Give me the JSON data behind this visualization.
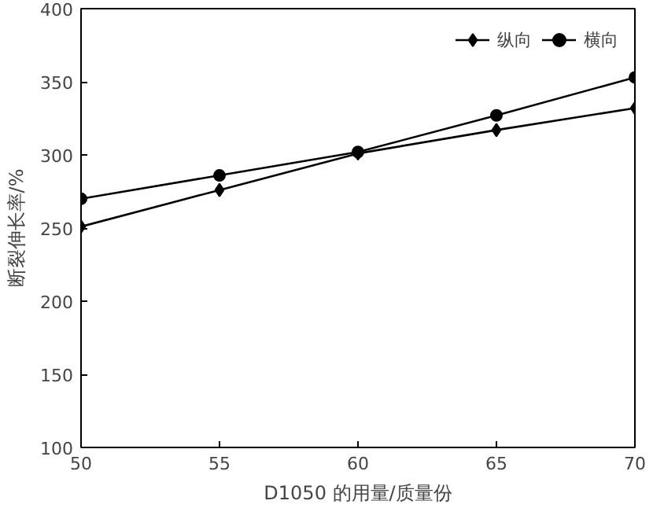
{
  "chart_data": {
    "type": "line",
    "xlabel": "D1050 的用量/质量份",
    "ylabel": "断裂伸长率/%",
    "x": [
      50,
      55,
      60,
      65,
      70
    ],
    "series": [
      {
        "name": "纵向",
        "color": "#000000",
        "values": [
          251,
          276,
          301,
          317,
          332
        ],
        "marker": "diamond"
      },
      {
        "name": "横向",
        "color": "#000000",
        "values": [
          270,
          286,
          302,
          327,
          353
        ],
        "marker": "circle"
      }
    ],
    "xlim": [
      50,
      70
    ],
    "xticks": [
      50,
      55,
      60,
      65,
      70
    ],
    "ylim": [
      100,
      400
    ],
    "yticks": [
      100,
      150,
      200,
      250,
      300,
      350,
      400
    ],
    "grid": false,
    "legend": "top right",
    "line_style": "solid"
  }
}
